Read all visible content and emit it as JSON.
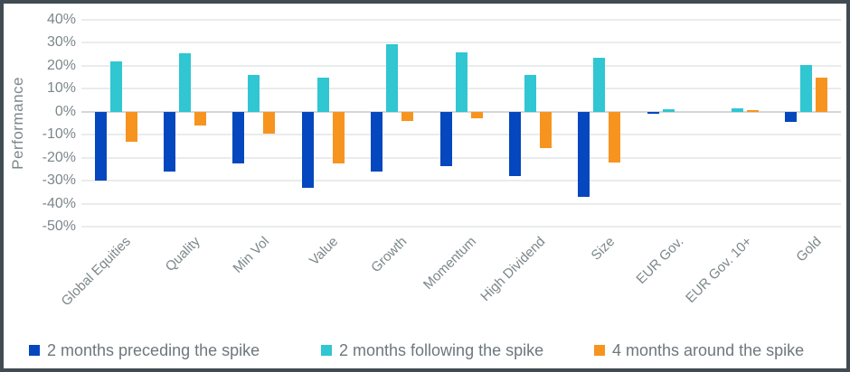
{
  "chart_data": {
    "type": "bar",
    "title": "",
    "xlabel": "",
    "ylabel": "Performance",
    "ylim": [
      -50,
      40
    ],
    "ytick_step": 10,
    "yticks": [
      40,
      30,
      20,
      10,
      0,
      -10,
      -20,
      -30,
      -40,
      -50
    ],
    "ytick_labels": [
      "40%",
      "30%",
      "20%",
      "10%",
      "0%",
      "-10%",
      "-20%",
      "-30%",
      "-40%",
      "-50%"
    ],
    "grid": "horizontal",
    "legend_position": "bottom",
    "categories": [
      "Global Equities",
      "Quality",
      "Min Vol",
      "Value",
      "Growth",
      "Momentum",
      "High Dividend",
      "Size",
      "EUR Gov.",
      "EUR Gov. 10+",
      "Gold"
    ],
    "series": [
      {
        "name": "2 months preceding the spike",
        "color": "#0447BE",
        "values": [
          -30,
          -26,
          -22.5,
          -33,
          -26,
          -23.5,
          -28,
          -37,
          -1,
          0,
          -4.5
        ]
      },
      {
        "name": "2 months following the spike",
        "color": "#30C6D2",
        "values": [
          22,
          25.5,
          16,
          15,
          29.5,
          26,
          16,
          23.5,
          1,
          1.3,
          20.5
        ]
      },
      {
        "name": "4 months around the spike",
        "color": "#F7941F",
        "values": [
          -13,
          -6,
          -9.5,
          -22.5,
          -4,
          -3,
          -16,
          -22,
          0,
          0.8,
          15
        ]
      }
    ]
  },
  "style": {
    "frame_border": "#414C52",
    "background": "#FFFFFF",
    "grid_color": "#E9ECEC",
    "zero_line_color": "#D2D7D8",
    "axis_text_color": "#7C878A",
    "legend_text_color": "#6D787C"
  }
}
